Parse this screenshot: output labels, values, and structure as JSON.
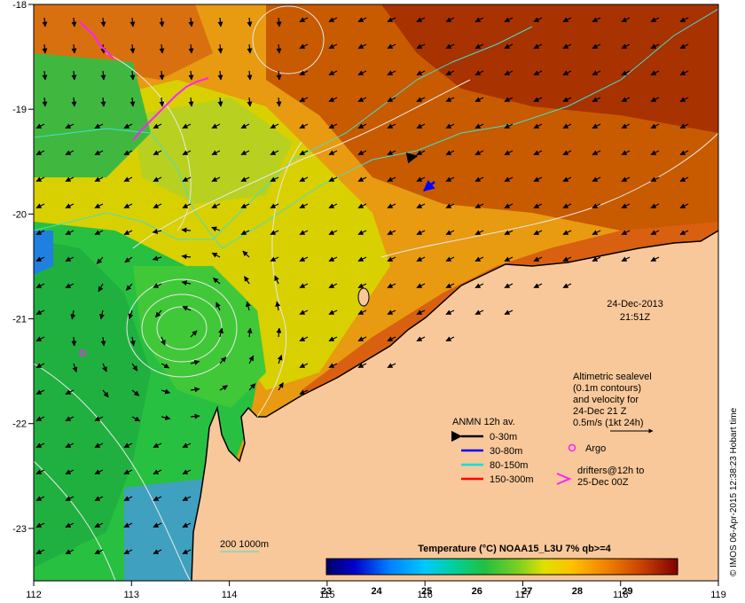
{
  "map": {
    "x_axis": {
      "min": 112,
      "max": 119,
      "ticks": [
        "112",
        "113",
        "114",
        "115",
        "116",
        "117",
        "118",
        "119"
      ]
    },
    "y_axis": {
      "min": -23.5,
      "max": -18,
      "ticks": [
        "-18",
        "-19",
        "-20",
        "-21",
        "-22",
        "-23"
      ]
    },
    "colors": {
      "land": "#f9c89a",
      "warm": "#a83200",
      "mid": "#e89a10",
      "cool": "#28c040",
      "contour": "#e8e8e8",
      "isobath": "#40e0d0"
    }
  },
  "timestamp": {
    "date": "24-Dec-2013",
    "time": "21:51Z"
  },
  "altimetry": {
    "line1": "Altimetric sealevel",
    "line2": "(0.1m contours)",
    "line3": "and velocity for",
    "line4": "24-Dec 21 Z",
    "line5": "0.5m/s (1kt 24h)"
  },
  "legend": {
    "title": "ANMN 12h av.",
    "items": [
      {
        "label": "0-30m",
        "color": "#000000"
      },
      {
        "label": "30-80m",
        "color": "#0000ff"
      },
      {
        "label": "80-150m",
        "color": "#00e0e0"
      },
      {
        "label": "150-300m",
        "color": "#ff0000"
      }
    ],
    "argo": "Argo",
    "drifters_line1": "drifters@12h to",
    "drifters_line2": "25-Dec 00Z"
  },
  "isobath_label": "200  1000m",
  "colorbar": {
    "title": "Temperature (°C) NOAA15_L3U 7% qb>=4",
    "min": 23,
    "max": 30,
    "ticks": [
      "23",
      "24",
      "25",
      "26",
      "27",
      "28",
      "29"
    ]
  },
  "credit": "© IMOS 06-Apr-2015 12:38:23 Hobart time"
}
